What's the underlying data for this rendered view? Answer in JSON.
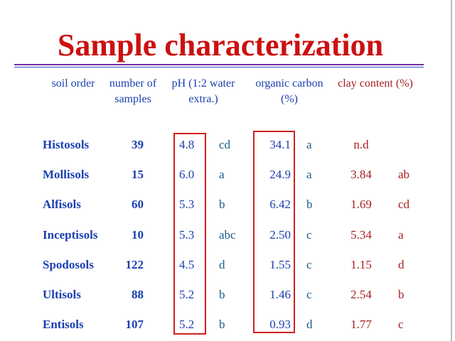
{
  "title": "Sample characterization",
  "table": {
    "headers": [
      "soil order",
      "number of samples",
      "pH (1:2 water extra.)",
      "organic carbon (%)",
      "clay content (%)"
    ],
    "rows": [
      [
        "Histosols",
        "39",
        "4.8",
        "cd",
        "34.1",
        "a",
        "n.d",
        null
      ],
      [
        "Mollisols",
        "15",
        "6.0",
        "a",
        "24.9",
        "a",
        "3.84",
        "ab"
      ],
      [
        "Alfisols",
        "60",
        "5.3",
        "b",
        "6.42",
        "b",
        "1.69",
        "cd"
      ],
      [
        "Inceptisols",
        "10",
        "5.3",
        "abc",
        "2.50",
        "c",
        "5.34",
        "a"
      ],
      [
        "Spodosols",
        "122",
        "4.5",
        "d",
        "1.55",
        "c",
        "1.15",
        "d"
      ],
      [
        "Ultisols",
        "88",
        "5.2",
        "b",
        "1.46",
        "c",
        "2.54",
        "b"
      ],
      [
        "Entisols",
        "107",
        "5.2",
        "b",
        "0.93",
        "d",
        "1.77",
        "c"
      ]
    ]
  }
}
